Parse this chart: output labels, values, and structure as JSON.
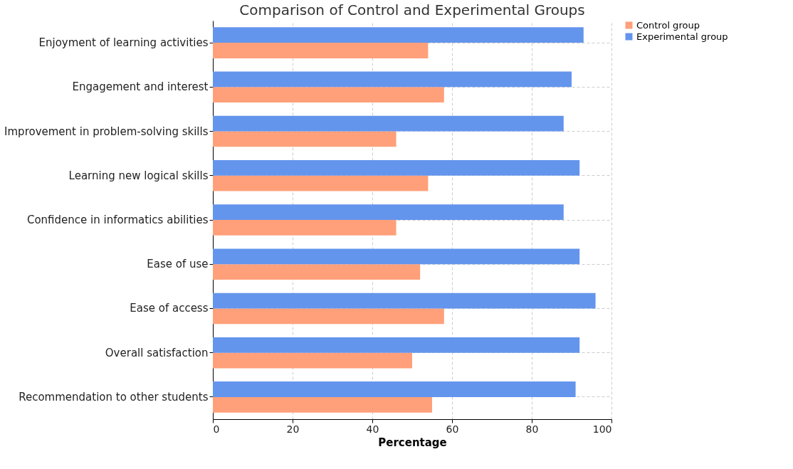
{
  "chart_data": {
    "type": "bar",
    "orientation": "horizontal",
    "title": "Comparison of Control and Experimental Groups",
    "xlabel": "Percentage",
    "categories": [
      "Enjoyment of learning activities",
      "Engagement and interest",
      "Improvement in problem-solving skills",
      "Learning new logical skills",
      "Confidence in informatics abilities",
      "Ease of use",
      "Ease of access",
      "Overall satisfaction",
      "Recommendation to other students"
    ],
    "series": [
      {
        "name": "Control group",
        "color": "#ffa07a",
        "values": [
          54,
          58,
          46,
          54,
          46,
          52,
          58,
          50,
          55
        ]
      },
      {
        "name": "Experimental group",
        "color": "#6495ed",
        "values": [
          93,
          90,
          88,
          92,
          88,
          92,
          96,
          92,
          91
        ]
      }
    ],
    "xlim": [
      0,
      100
    ],
    "xticks": [
      0,
      20,
      40,
      60,
      80,
      100
    ],
    "grid": true,
    "legend": "top right"
  }
}
